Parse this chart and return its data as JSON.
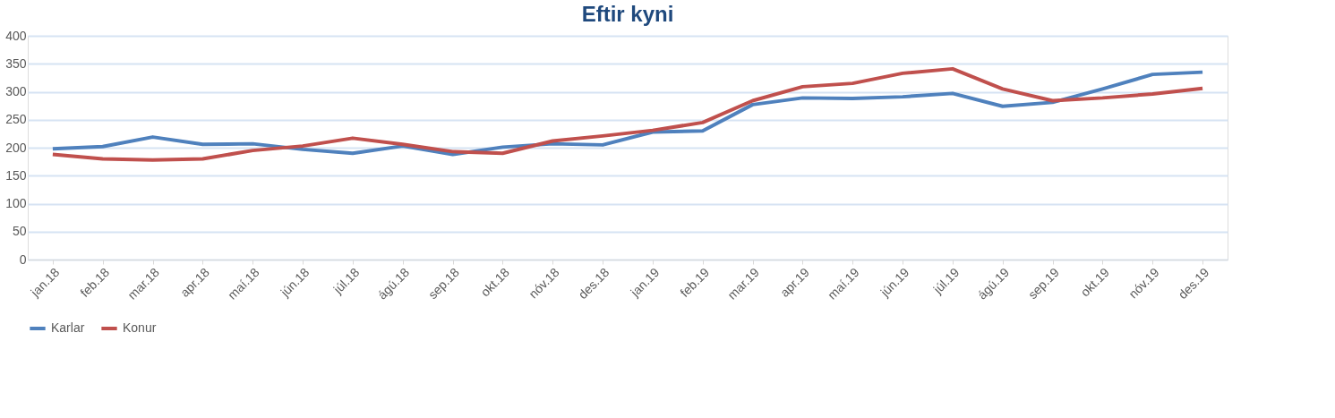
{
  "chart_data": {
    "type": "line",
    "title": "Eftir kyni",
    "categories": [
      "jan.18",
      "feb.18",
      "mar.18",
      "apr.18",
      "maí.18",
      "jún.18",
      "júl.18",
      "ágú.18",
      "sep.18",
      "okt.18",
      "nóv.18",
      "des.18",
      "jan.19",
      "feb.19",
      "mar.19",
      "apr.19",
      "maí.19",
      "jún.19",
      "júl.19",
      "ágú.19",
      "sep.19",
      "okt.19",
      "nóv.19",
      "des.19"
    ],
    "series": [
      {
        "name": "Karlar",
        "color": "#4f81bd",
        "values": [
          198,
          202,
          219,
          206,
          207,
          197,
          190,
          203,
          188,
          201,
          207,
          205,
          228,
          230,
          277,
          289,
          288,
          291,
          297,
          274,
          281,
          305,
          331,
          335
        ]
      },
      {
        "name": "Konur",
        "color": "#c0504d",
        "values": [
          188,
          180,
          178,
          180,
          195,
          203,
          217,
          206,
          193,
          190,
          212,
          221,
          231,
          245,
          284,
          309,
          315,
          333,
          341,
          305,
          284,
          289,
          296,
          306
        ]
      }
    ],
    "ylim": [
      0,
      400
    ],
    "yticks": [
      0,
      50,
      100,
      150,
      200,
      250,
      300,
      350,
      400
    ],
    "grid": "y",
    "legend": "bottom"
  }
}
